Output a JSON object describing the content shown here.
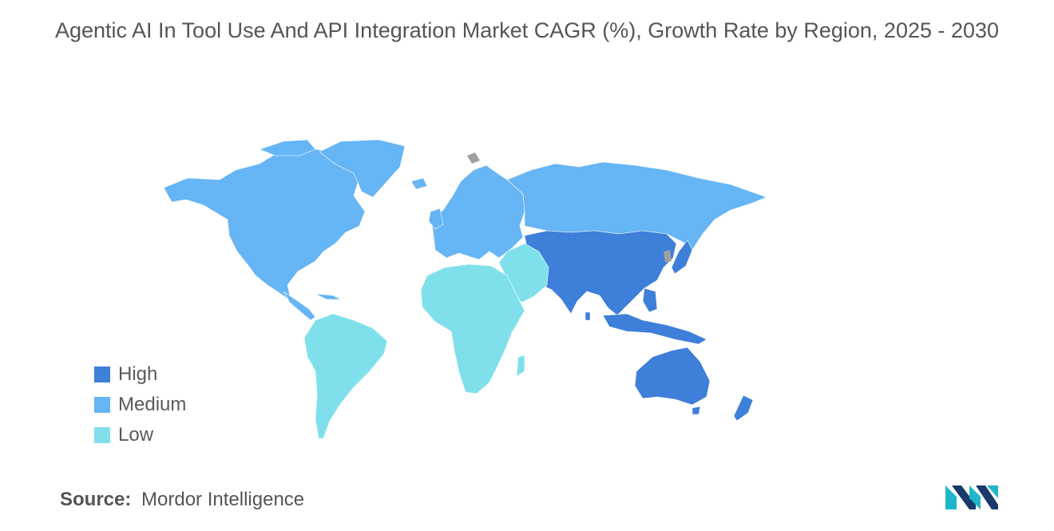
{
  "title": "Agentic AI In Tool Use And API Integration Market CAGR (%), Growth Rate by Region, 2025 - 2030",
  "colors": {
    "high": "#3d7fd9",
    "medium": "#66b5f5",
    "low": "#7fe0ec",
    "no_data": "#a0a0a0"
  },
  "legend": [
    {
      "label": "High",
      "color": "#3d7fd9"
    },
    {
      "label": "Medium",
      "color": "#66b5f5"
    },
    {
      "label": "Low",
      "color": "#7fe0ec"
    }
  ],
  "regions": [
    {
      "name": "North America",
      "level": "Medium"
    },
    {
      "name": "Europe",
      "level": "Medium"
    },
    {
      "name": "Asia-Pacific",
      "level": "High"
    },
    {
      "name": "Latin America",
      "level": "Low"
    },
    {
      "name": "Middle East and Africa",
      "level": "Low"
    }
  ],
  "source": {
    "label": "Source:",
    "value": "Mordor Intelligence"
  },
  "logo_icon": "mordor-intelligence-logo-icon"
}
